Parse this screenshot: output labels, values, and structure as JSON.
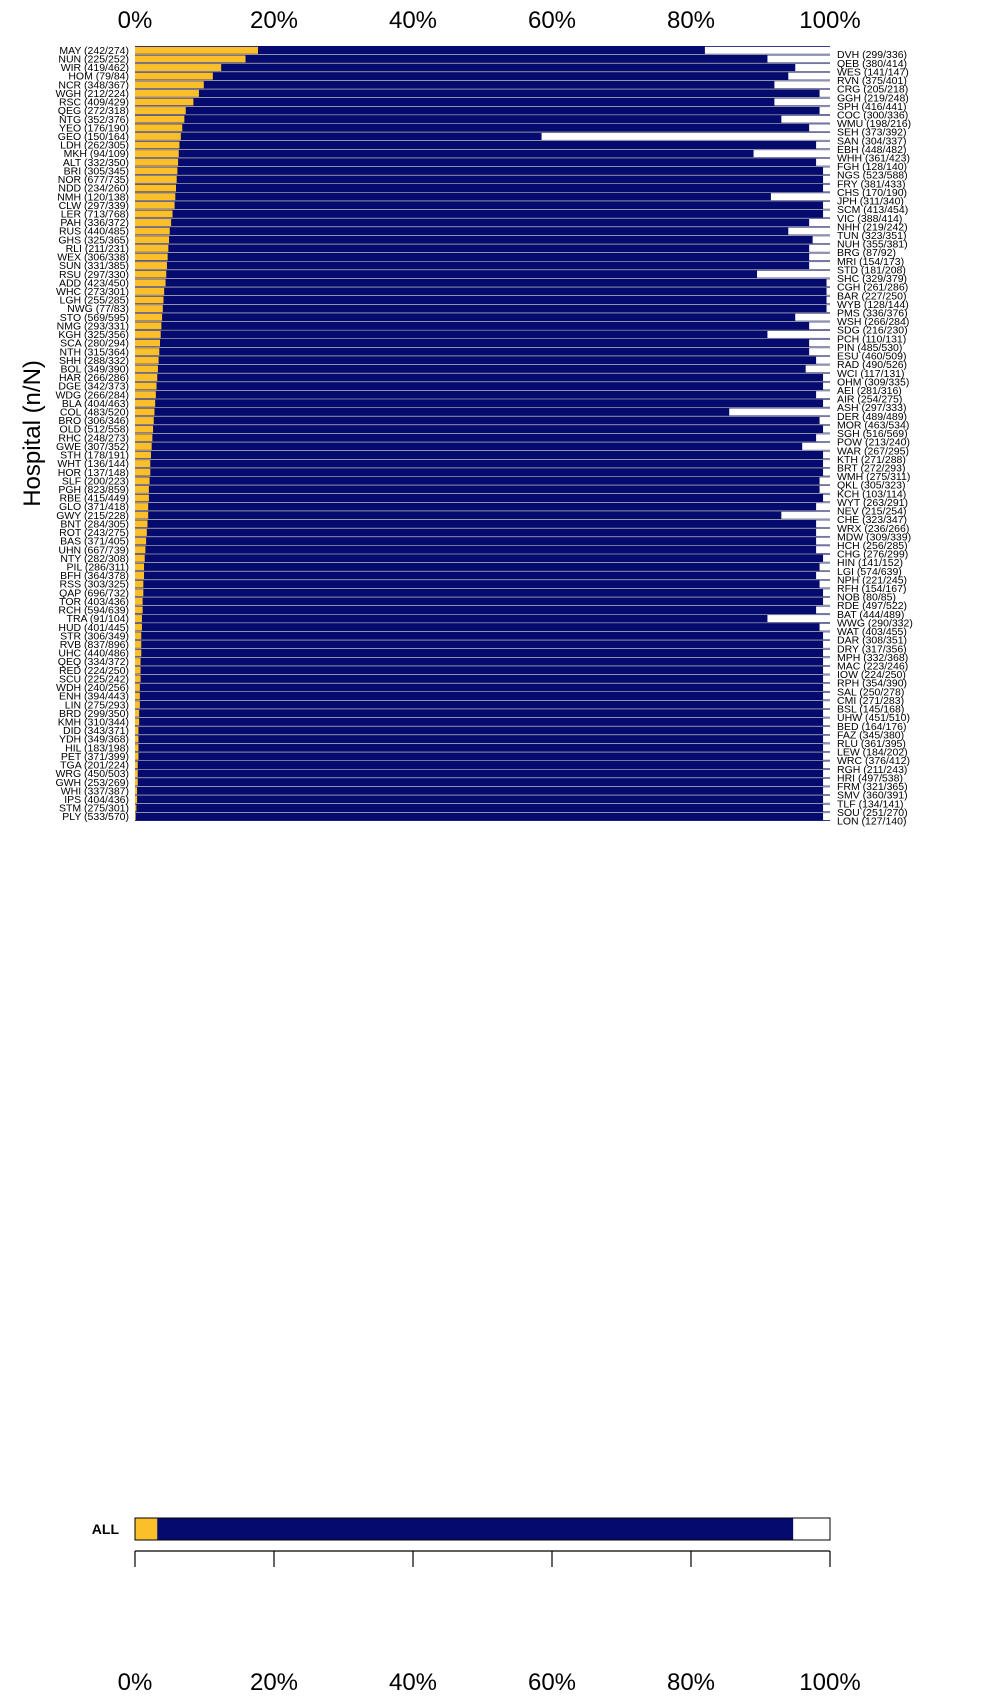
{
  "chart_data": {
    "type": "bar",
    "subtype": "stacked-horizontal-proportion",
    "ylabel": "Hospital (n/N)",
    "xlim": [
      0,
      100
    ],
    "x_ticks": [
      "0%",
      "20%",
      "40%",
      "60%",
      "80%",
      "100%"
    ],
    "colors": {
      "left": "#FBBF2A",
      "middle": "#050A6E",
      "right": "#FFFFFF",
      "separator": "#E8E4C8"
    },
    "left_rows": [
      {
        "label": "MAY (242/274)",
        "left": 17.7
      },
      {
        "label": "NUN (225/252)",
        "left": 15.9
      },
      {
        "label": "WIR (419/462)",
        "left": 12.4
      },
      {
        "label": "HOM (79/84)",
        "left": 11.2
      },
      {
        "label": "NCR (348/367)",
        "left": 9.9
      },
      {
        "label": "WGH (212/224)",
        "left": 9.2
      },
      {
        "label": "RSC (409/429)",
        "left": 8.4
      },
      {
        "label": "QEG (272/318)",
        "left": 7.3
      },
      {
        "label": "NTG (352/376)",
        "left": 7.1
      },
      {
        "label": "YEO (176/190)",
        "left": 6.8
      },
      {
        "label": "GEO (150/164)",
        "left": 6.6
      },
      {
        "label": "LDH (262/305)",
        "left": 6.4
      },
      {
        "label": "MKH (94/109)",
        "left": 6.3
      },
      {
        "label": "ALT (332/350)",
        "left": 6.2
      },
      {
        "label": "BRI (305/345)",
        "left": 6.1
      },
      {
        "label": "NOR (677/735)",
        "left": 6.0
      },
      {
        "label": "NDD (234/260)",
        "left": 5.9
      },
      {
        "label": "NMH (120/138)",
        "left": 5.8
      },
      {
        "label": "CLW (297/339)",
        "left": 5.7
      },
      {
        "label": "LER (713/768)",
        "left": 5.4
      },
      {
        "label": "PAH (336/372)",
        "left": 5.2
      },
      {
        "label": "RUS (440/485)",
        "left": 5.0
      },
      {
        "label": "GHS (325/365)",
        "left": 4.9
      },
      {
        "label": "RLI (211/231)",
        "left": 4.8
      },
      {
        "label": "WEX (306/338)",
        "left": 4.7
      },
      {
        "label": "SUN (331/385)",
        "left": 4.6
      },
      {
        "label": "RSU (297/330)",
        "left": 4.5
      },
      {
        "label": "ADD (423/450)",
        "left": 4.4
      },
      {
        "label": "WHC (273/301)",
        "left": 4.2
      },
      {
        "label": "LGH (255/285)",
        "left": 4.1
      },
      {
        "label": "NWG (77/83)",
        "left": 4.0
      },
      {
        "label": "STO (569/595)",
        "left": 3.9
      },
      {
        "label": "NMG (293/331)",
        "left": 3.8
      },
      {
        "label": "KGH (325/356)",
        "left": 3.7
      },
      {
        "label": "SCA (280/294)",
        "left": 3.6
      },
      {
        "label": "NTH (315/364)",
        "left": 3.5
      },
      {
        "label": "SHH (288/332)",
        "left": 3.4
      },
      {
        "label": "BOL (349/390)",
        "left": 3.3
      },
      {
        "label": "HAR (266/286)",
        "left": 3.2
      },
      {
        "label": "DGE (342/373)",
        "left": 3.1
      },
      {
        "label": "WDG (266/284)",
        "left": 3.0
      },
      {
        "label": "BLA (404/463)",
        "left": 2.9
      },
      {
        "label": "COL (483/520)",
        "left": 2.8
      },
      {
        "label": "BRO (306/346)",
        "left": 2.7
      },
      {
        "label": "OLD (512/558)",
        "left": 2.6
      },
      {
        "label": "RHC (248/273)",
        "left": 2.5
      },
      {
        "label": "GWE (307/352)",
        "left": 2.4
      },
      {
        "label": "STH (178/191)",
        "left": 2.3
      },
      {
        "label": "WHT (136/144)",
        "left": 2.2
      },
      {
        "label": "HOR (137/148)",
        "left": 2.2
      },
      {
        "label": "SLF (200/223)",
        "left": 2.1
      },
      {
        "label": "PGH (823/859)",
        "left": 2.0
      },
      {
        "label": "RBE (415/449)",
        "left": 2.0
      },
      {
        "label": "GLO (371/418)",
        "left": 1.9
      },
      {
        "label": "GWY (215/228)",
        "left": 1.9
      },
      {
        "label": "BNT (284/305)",
        "left": 1.8
      },
      {
        "label": "ROT (243/275)",
        "left": 1.7
      },
      {
        "label": "BAS (371/405)",
        "left": 1.6
      },
      {
        "label": "UHN (667/739)",
        "left": 1.5
      },
      {
        "label": "NTY (282/308)",
        "left": 1.4
      },
      {
        "label": "PIL (286/311)",
        "left": 1.3
      },
      {
        "label": "BFH (364/378)",
        "left": 1.3
      },
      {
        "label": "RSS (303/325)",
        "left": 1.2
      },
      {
        "label": "QAP (696/732)",
        "left": 1.2
      },
      {
        "label": "TOR (403/436)",
        "left": 1.1
      },
      {
        "label": "RCH (594/639)",
        "left": 1.1
      },
      {
        "label": "TRA (91/104)",
        "left": 1.0
      },
      {
        "label": "HUD (401/445)",
        "left": 1.0
      },
      {
        "label": "STR (306/349)",
        "left": 0.9
      },
      {
        "label": "RVB (837/896)",
        "left": 0.9
      },
      {
        "label": "UHC (440/486)",
        "left": 0.9
      },
      {
        "label": "QEQ (334/372)",
        "left": 0.8
      },
      {
        "label": "RED (224/250)",
        "left": 0.8
      },
      {
        "label": "SCU (225/242)",
        "left": 0.8
      },
      {
        "label": "WDH (240/256)",
        "left": 0.7
      },
      {
        "label": "ENH (394/443)",
        "left": 0.7
      },
      {
        "label": "LIN (275/293)",
        "left": 0.7
      },
      {
        "label": "BRD (299/350)",
        "left": 0.6
      },
      {
        "label": "KMH (310/344)",
        "left": 0.6
      },
      {
        "label": "DID (343/371)",
        "left": 0.5
      },
      {
        "label": "YDH (349/368)",
        "left": 0.5
      },
      {
        "label": "HIL (183/198)",
        "left": 0.5
      },
      {
        "label": "PET (371/399)",
        "left": 0.5
      },
      {
        "label": "TGA (201/224)",
        "left": 0.4
      },
      {
        "label": "WRG (450/503)",
        "left": 0.4
      },
      {
        "label": "GWH (253/269)",
        "left": 0.4
      },
      {
        "label": "WHI (337/387)",
        "left": 0.3
      },
      {
        "label": "IPS (404/436)",
        "left": 0.3
      },
      {
        "label": "STM (275/301)",
        "left": 0.2
      },
      {
        "label": "PLY (533/570)",
        "left": 0.1
      }
    ],
    "right_rows": [
      {
        "label": "DVH (299/336)",
        "right": 18.0
      },
      {
        "label": "QEB (380/414)",
        "right": 9.0
      },
      {
        "label": "WES (141/147)",
        "right": 5.0
      },
      {
        "label": "RVN (375/401)",
        "right": 6.0
      },
      {
        "label": "CRG (205/218)",
        "right": 8.0
      },
      {
        "label": "GGH (219/248)",
        "right": 1.5
      },
      {
        "label": "SPH (416/441)",
        "right": 8.0
      },
      {
        "label": "COC (300/336)",
        "right": 1.5
      },
      {
        "label": "WMU (198/216)",
        "right": 7.0
      },
      {
        "label": "SEH (373/392)",
        "right": 3.0
      },
      {
        "label": "SAN (304/337)",
        "right": 41.5
      },
      {
        "label": "EBH (448/482)",
        "right": 2.0
      },
      {
        "label": "WHH (361/423)",
        "right": 11.0
      },
      {
        "label": "FGH (128/140)",
        "right": 2.0
      },
      {
        "label": "NGS (523/588)",
        "right": 1.0
      },
      {
        "label": "FRY (381/433)",
        "right": 1.0
      },
      {
        "label": "CHS (170/190)",
        "right": 1.0
      },
      {
        "label": "JPH (311/340)",
        "right": 8.5
      },
      {
        "label": "SCM (413/454)",
        "right": 1.0
      },
      {
        "label": "VIC (388/414)",
        "right": 1.0
      },
      {
        "label": "NHH (219/242)",
        "right": 3.0
      },
      {
        "label": "TUN (323/351)",
        "right": 6.0
      },
      {
        "label": "NUH (355/381)",
        "right": 2.5
      },
      {
        "label": "BRG (87/92)",
        "right": 3.0
      },
      {
        "label": "MRI (154/173)",
        "right": 3.0
      },
      {
        "label": "STD (181/208)",
        "right": 3.0
      },
      {
        "label": "SHC (329/379)",
        "right": 10.5
      },
      {
        "label": "CGH (261/286)",
        "right": 0.5
      },
      {
        "label": "BAR (227/250)",
        "right": 0.5
      },
      {
        "label": "WYB (128/144)",
        "right": 0.5
      },
      {
        "label": "PMS (336/376)",
        "right": 0.5
      },
      {
        "label": "WSH (266/284)",
        "right": 5.0
      },
      {
        "label": "SDG (216/230)",
        "right": 3.0
      },
      {
        "label": "PCH (110/131)",
        "right": 9.0
      },
      {
        "label": "PIN (485/530)",
        "right": 3.0
      },
      {
        "label": "ESU (460/509)",
        "right": 3.0
      },
      {
        "label": "RAD (490/526)",
        "right": 2.0
      },
      {
        "label": "WCI (117/131)",
        "right": 3.5
      },
      {
        "label": "OHM (309/335)",
        "right": 1.0
      },
      {
        "label": "AEI (281/316)",
        "right": 1.0
      },
      {
        "label": "AIR (254/275)",
        "right": 2.0
      },
      {
        "label": "ASH (297/333)",
        "right": 1.0
      },
      {
        "label": "DER (489/489)",
        "right": 14.5
      },
      {
        "label": "MOR (463/534)",
        "right": 1.5
      },
      {
        "label": "SGH (516/569)",
        "right": 1.0
      },
      {
        "label": "POW (213/240)",
        "right": 2.0
      },
      {
        "label": "WAR (267/295)",
        "right": 4.0
      },
      {
        "label": "KTH (271/288)",
        "right": 1.0
      },
      {
        "label": "BRT (272/293)",
        "right": 1.0
      },
      {
        "label": "WMH (275/311)",
        "right": 1.0
      },
      {
        "label": "QKL (305/323)",
        "right": 1.5
      },
      {
        "label": "KCH (103/114)",
        "right": 1.5
      },
      {
        "label": "WYT (263/291)",
        "right": 1.0
      },
      {
        "label": "NEV (215/254)",
        "right": 2.0
      },
      {
        "label": "CHE (323/347)",
        "right": 7.0
      },
      {
        "label": "WRX (236/266)",
        "right": 2.0
      },
      {
        "label": "MDW (309/339)",
        "right": 2.0
      },
      {
        "label": "HCH (256/285)",
        "right": 2.0
      },
      {
        "label": "CHG (276/299)",
        "right": 2.0
      },
      {
        "label": "HIN (141/152)",
        "right": 1.0
      },
      {
        "label": "LGI (574/639)",
        "right": 1.5
      },
      {
        "label": "NPH (221/245)",
        "right": 2.0
      },
      {
        "label": "RFH (154/167)",
        "right": 1.5
      },
      {
        "label": "NOB (80/85)",
        "right": 1.0
      },
      {
        "label": "RDE (497/522)",
        "right": 1.0
      },
      {
        "label": "BAT (444/489)",
        "right": 2.0
      },
      {
        "label": "WWG (290/332)",
        "right": 9.0
      },
      {
        "label": "WAT (403/455)",
        "right": 1.5
      },
      {
        "label": "DAR (308/351)",
        "right": 1.0
      },
      {
        "label": "DRY (317/356)",
        "right": 1.0
      },
      {
        "label": "MPH (332/368)",
        "right": 1.0
      },
      {
        "label": "MAC (223/246)",
        "right": 1.0
      },
      {
        "label": "IOW (224/250)",
        "right": 1.0
      },
      {
        "label": "RPH (354/390)",
        "right": 1.0
      },
      {
        "label": "SAL (250/278)",
        "right": 1.0
      },
      {
        "label": "CMI (271/283)",
        "right": 1.0
      },
      {
        "label": "BSL (145/168)",
        "right": 1.0
      },
      {
        "label": "UHW (451/510)",
        "right": 1.0
      },
      {
        "label": "BED (164/176)",
        "right": 1.0
      },
      {
        "label": "FAZ (345/380)",
        "right": 1.0
      },
      {
        "label": "RLU (361/395)",
        "right": 1.0
      },
      {
        "label": "LEW (184/202)",
        "right": 1.0
      },
      {
        "label": "WRC (376/412)",
        "right": 1.0
      },
      {
        "label": "RGH (211/243)",
        "right": 1.0
      },
      {
        "label": "HRI (497/538)",
        "right": 1.0
      },
      {
        "label": "FRM (321/365)",
        "right": 1.0
      },
      {
        "label": "SMV (360/391)",
        "right": 1.0
      },
      {
        "label": "TLF (134/141)",
        "right": 1.0
      },
      {
        "label": "SOU (251/270)",
        "right": 1.0
      },
      {
        "label": "LON (127/140)",
        "right": 1.0
      }
    ],
    "all_row": {
      "label": "ALL",
      "left": 3.2,
      "right": 5.3
    }
  }
}
